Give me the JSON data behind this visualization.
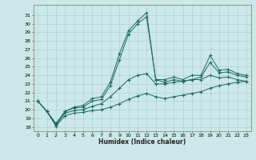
{
  "xlabel": "Humidex (Indice chaleur)",
  "bg_color": "#cce8e8",
  "grid_color": "#aacccc",
  "line_color": "#1a6b5a",
  "xlim": [
    -0.5,
    23.5
  ],
  "ylim": [
    17.5,
    32.2
  ],
  "xticks": [
    0,
    1,
    2,
    3,
    4,
    5,
    6,
    7,
    8,
    9,
    10,
    11,
    12,
    13,
    14,
    15,
    16,
    17,
    18,
    19,
    20,
    21,
    22,
    23
  ],
  "yticks": [
    18,
    19,
    20,
    21,
    22,
    23,
    24,
    25,
    26,
    27,
    28,
    29,
    30,
    31
  ],
  "series": [
    [
      21.0,
      19.8,
      18.2,
      19.8,
      20.3,
      20.5,
      21.3,
      21.5,
      23.2,
      26.5,
      29.2,
      30.3,
      31.3,
      23.5,
      23.5,
      23.8,
      23.5,
      24.0,
      24.0,
      26.3,
      24.6,
      24.7,
      24.2,
      24.0
    ],
    [
      21.0,
      19.8,
      18.4,
      19.8,
      20.2,
      20.3,
      21.0,
      21.2,
      22.8,
      25.8,
      28.8,
      30.0,
      30.8,
      23.5,
      23.2,
      23.5,
      23.3,
      23.5,
      23.8,
      25.5,
      24.3,
      24.4,
      24.0,
      23.8
    ],
    [
      21.0,
      19.8,
      18.3,
      19.6,
      19.9,
      20.0,
      20.4,
      20.7,
      21.5,
      22.5,
      23.5,
      24.0,
      24.2,
      23.0,
      23.0,
      23.2,
      23.3,
      23.5,
      23.5,
      24.0,
      23.7,
      23.8,
      23.5,
      23.3
    ],
    [
      21.0,
      19.8,
      18.1,
      19.3,
      19.6,
      19.7,
      19.9,
      20.0,
      20.3,
      20.7,
      21.2,
      21.6,
      21.9,
      21.5,
      21.3,
      21.5,
      21.7,
      21.9,
      22.1,
      22.5,
      22.8,
      23.0,
      23.2,
      23.3
    ]
  ]
}
